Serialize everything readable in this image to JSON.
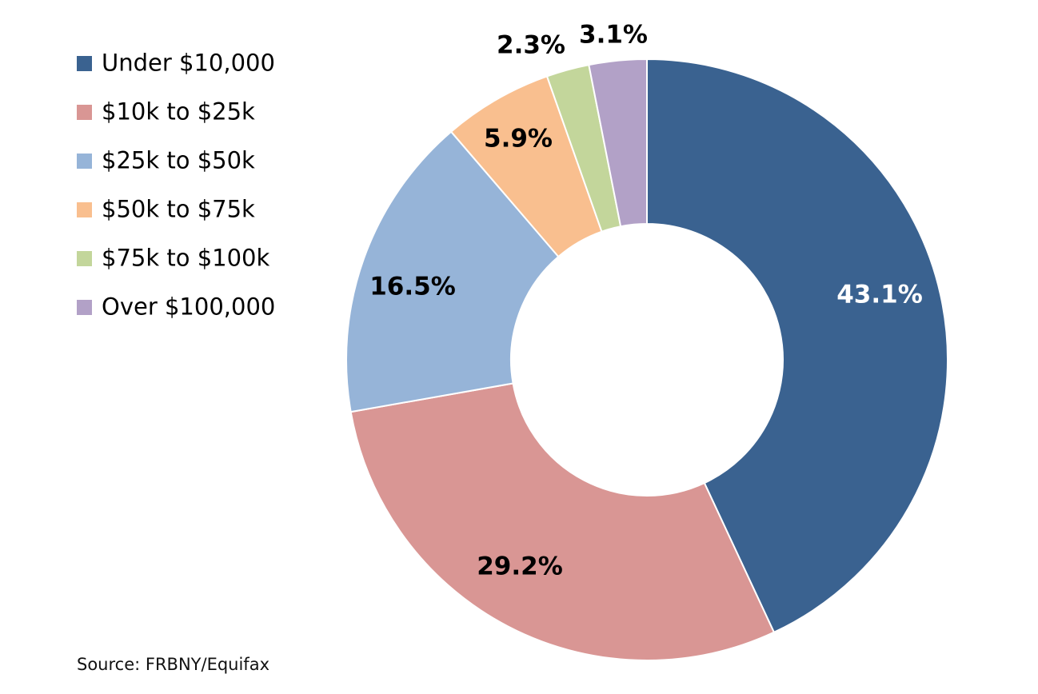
{
  "chart_data": {
    "type": "pie",
    "variant": "donut",
    "title": "",
    "categories": [
      "Under $10,000",
      "$10k to $25k",
      "$25k to $50k",
      "$50k to $75k",
      "$75k to $100k",
      "Over $100,000"
    ],
    "values": [
      43.1,
      29.2,
      16.5,
      5.9,
      2.3,
      3.1
    ],
    "value_labels": [
      "43.1%",
      "29.2%",
      "16.5%",
      "5.9%",
      "2.3%",
      "3.1%"
    ],
    "colors": [
      "#3A6290",
      "#D99694",
      "#96B4D8",
      "#F9BF8F",
      "#C3D69B",
      "#B2A1C7"
    ],
    "label_colors": [
      "#FFFFFF",
      "#000000",
      "#000000",
      "#000000",
      "#000000",
      "#000000"
    ],
    "legend_position": "top-left",
    "start_angle_deg": 0,
    "direction": "clockwise"
  },
  "source": {
    "text": "Source: FRBNY/Equifax"
  }
}
